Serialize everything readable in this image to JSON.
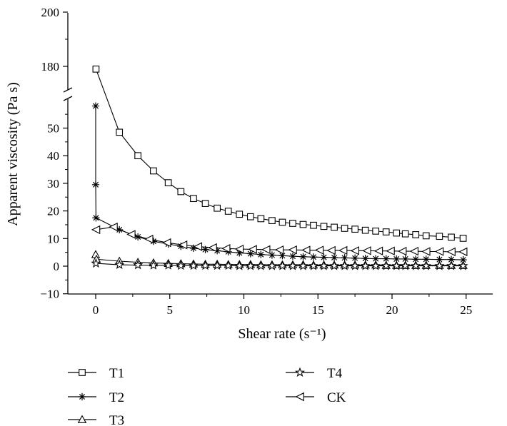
{
  "chart_data": {
    "type": "line",
    "title": "",
    "xlabel": "Shear rate (s⁻¹)",
    "ylabel": "Apparent viscosity (Pa s)",
    "xlim": [
      -2,
      27
    ],
    "ylim_lower": [
      -10,
      60
    ],
    "ylim_upper_ticks": [
      180,
      200
    ],
    "axis_break": "y between 60 and 170",
    "x_ticks": [
      "0",
      "5",
      "10",
      "15",
      "20",
      "25"
    ],
    "y_ticks": [
      "−10",
      "0",
      "10",
      "20",
      "30",
      "40",
      "50",
      "180",
      "200"
    ],
    "legend": [
      "T1",
      "T2",
      "T3",
      "T4",
      "CK"
    ],
    "series": [
      {
        "name": "T1",
        "marker": "square",
        "x": [
          0.02,
          1.6,
          2.85,
          3.9,
          4.9,
          5.75,
          6.6,
          7.4,
          8.2,
          8.95,
          9.7,
          10.45,
          11.15,
          11.9,
          12.6,
          13.3,
          14.0,
          14.7,
          15.4,
          16.1,
          16.8,
          17.5,
          18.2,
          18.9,
          19.6,
          20.3,
          20.9,
          21.6,
          22.3,
          23.2,
          24.0,
          24.8
        ],
        "values": [
          179,
          48.5,
          40,
          34.5,
          30.2,
          27,
          24.5,
          22.7,
          21,
          19.9,
          18.8,
          17.9,
          17.2,
          16.5,
          15.9,
          15.5,
          15.1,
          14.8,
          14.4,
          14.1,
          13.7,
          13.4,
          13.0,
          12.7,
          12.4,
          12.0,
          11.7,
          11.4,
          11.0,
          10.8,
          10.5,
          10.1
        ]
      },
      {
        "name": "T2",
        "marker": "asterisk",
        "x": [
          0,
          0,
          0.02,
          1.6,
          2.85,
          3.9,
          4.9,
          5.75,
          6.6,
          7.4,
          8.2,
          8.95,
          9.7,
          10.45,
          11.15,
          11.9,
          12.6,
          13.3,
          14.0,
          14.7,
          15.4,
          16.1,
          16.8,
          17.5,
          18.2,
          18.9,
          19.6,
          20.3,
          20.9,
          21.6,
          22.3,
          23.2,
          24.0,
          24.8
        ],
        "values": [
          58,
          29.5,
          17.5,
          13.2,
          10.6,
          9.0,
          8.0,
          7.2,
          6.5,
          6.0,
          5.6,
          5.2,
          4.8,
          4.5,
          4.2,
          4.0,
          3.8,
          3.6,
          3.4,
          3.3,
          3.2,
          3.1,
          3.0,
          2.9,
          2.8,
          2.7,
          2.7,
          2.6,
          2.6,
          2.5,
          2.5,
          2.4,
          2.4,
          2.3
        ]
      },
      {
        "name": "T3",
        "marker": "triangle-up",
        "x": [
          0,
          0.05,
          1.6,
          2.85,
          3.9,
          4.9,
          5.75,
          6.6,
          7.4,
          8.2,
          8.95,
          9.7,
          10.45,
          11.15,
          11.9,
          12.6,
          13.3,
          14.0,
          14.7,
          15.4,
          16.1,
          16.8,
          17.5,
          18.2,
          18.9,
          19.6,
          20.3,
          20.9,
          21.6,
          22.3,
          23.2,
          24.0,
          24.8
        ],
        "values": [
          4.2,
          2.5,
          1.8,
          1.4,
          1.2,
          1.0,
          0.9,
          0.8,
          0.7,
          0.7,
          0.6,
          0.6,
          0.6,
          0.5,
          0.5,
          0.5,
          0.5,
          0.5,
          0.4,
          0.4,
          0.4,
          0.4,
          0.4,
          0.4,
          0.4,
          0.3,
          0.3,
          0.3,
          0.3,
          0.3,
          0.3,
          0.3,
          0.3
        ]
      },
      {
        "name": "T4",
        "marker": "star",
        "x": [
          0.02,
          1.6,
          2.85,
          3.9,
          4.9,
          5.75,
          6.6,
          7.4,
          8.2,
          8.95,
          9.7,
          10.45,
          11.15,
          11.9,
          12.6,
          13.3,
          14.0,
          14.7,
          15.4,
          16.1,
          16.8,
          17.5,
          18.2,
          18.9,
          19.6,
          20.3,
          20.9,
          21.6,
          22.3,
          23.2,
          24.0,
          24.8
        ],
        "values": [
          1.0,
          0.5,
          0.4,
          0.3,
          0.3,
          0.2,
          0.2,
          0.2,
          0.2,
          0.2,
          0.1,
          0.1,
          0.1,
          0.1,
          0.1,
          0.1,
          0.1,
          0.1,
          0.1,
          0.1,
          0.1,
          0.1,
          0.1,
          0.1,
          0.1,
          0.1,
          0.1,
          0.1,
          0.1,
          0.1,
          0.1,
          0.1
        ]
      },
      {
        "name": "CK",
        "marker": "triangle-left",
        "x": [
          0.02,
          1.2,
          2.4,
          3.6,
          4.8,
          5.9,
          6.9,
          7.9,
          8.8,
          9.7,
          10.6,
          11.5,
          12.4,
          13.3,
          14.2,
          15.1,
          15.9,
          16.7,
          17.5,
          18.3,
          19.1,
          19.9,
          20.7,
          21.5,
          22.3,
          23.2,
          24.0,
          24.8
        ],
        "values": [
          13.2,
          14.2,
          11.5,
          9.8,
          8.5,
          7.7,
          7.1,
          6.7,
          6.4,
          6.2,
          6.1,
          6.0,
          5.9,
          5.9,
          5.8,
          5.8,
          5.7,
          5.7,
          5.6,
          5.6,
          5.5,
          5.5,
          5.4,
          5.4,
          5.3,
          5.3,
          5.2,
          5.2
        ]
      }
    ]
  }
}
